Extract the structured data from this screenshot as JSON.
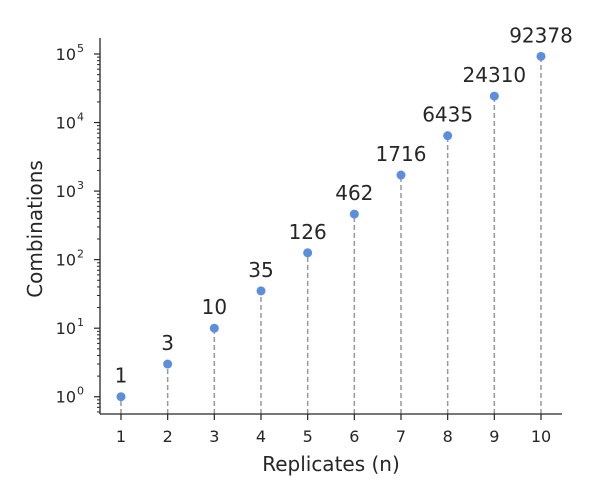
{
  "chart_data": {
    "type": "scatter",
    "title": "",
    "xlabel": "Replicates (n)",
    "ylabel": "Combinations",
    "yscale": "log",
    "ylim": [
      0.56,
      160000
    ],
    "xlim": [
      0.55,
      10.45
    ],
    "x": [
      1,
      2,
      3,
      4,
      5,
      6,
      7,
      8,
      9,
      10
    ],
    "values": [
      1,
      3,
      10,
      35,
      126,
      462,
      1716,
      6435,
      24310,
      92378
    ],
    "data_labels": [
      "1",
      "3",
      "10",
      "35",
      "126",
      "462",
      "1716",
      "6435",
      "24310",
      "92378"
    ],
    "x_ticks": [
      "1",
      "2",
      "3",
      "4",
      "5",
      "6",
      "7",
      "8",
      "9",
      "10"
    ],
    "y_ticks": [
      {
        "base": "10",
        "exp": "0",
        "value": 1
      },
      {
        "base": "10",
        "exp": "1",
        "value": 10
      },
      {
        "base": "10",
        "exp": "2",
        "value": 100
      },
      {
        "base": "10",
        "exp": "3",
        "value": 1000
      },
      {
        "base": "10",
        "exp": "4",
        "value": 10000
      },
      {
        "base": "10",
        "exp": "5",
        "value": 100000
      }
    ],
    "grid": false,
    "marker_color": "#5b8fde",
    "stem_color": "#999999",
    "axis_color": "#262626"
  }
}
